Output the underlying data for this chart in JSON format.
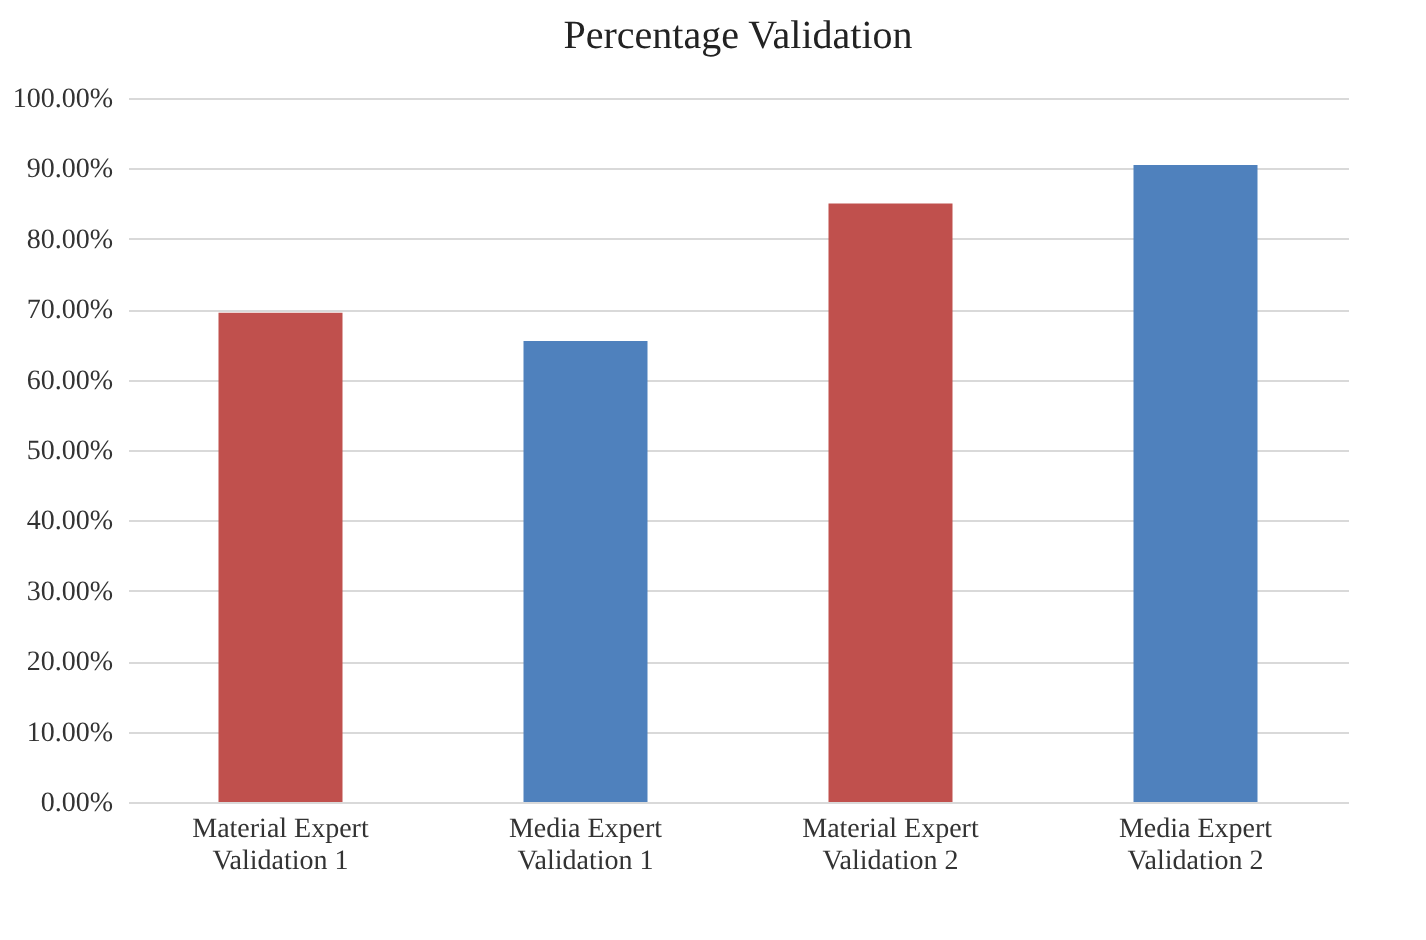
{
  "chart_data": {
    "type": "bar",
    "title": "Percentage Validation",
    "categories": [
      "Material Expert Validation 1",
      "Media Expert Validation 1",
      "Material Expert Validation 2",
      "Media Expert Validation 2"
    ],
    "values": [
      69.5,
      65.5,
      85,
      90.5
    ],
    "colors": [
      "#c0504d",
      "#4f81bd",
      "#c0504d",
      "#4f81bd"
    ],
    "ylim": [
      0,
      100
    ],
    "yticks": [
      {
        "value": 0,
        "label": "0.00%"
      },
      {
        "value": 10,
        "label": "10.00%"
      },
      {
        "value": 20,
        "label": "20.00%"
      },
      {
        "value": 30,
        "label": "30.00%"
      },
      {
        "value": 40,
        "label": "40.00%"
      },
      {
        "value": 50,
        "label": "50.00%"
      },
      {
        "value": 60,
        "label": "60.00%"
      },
      {
        "value": 70,
        "label": "70.00%"
      },
      {
        "value": 80,
        "label": "80.00%"
      },
      {
        "value": 90,
        "label": "90.00%"
      },
      {
        "value": 100,
        "label": "100.00%"
      }
    ],
    "grid": "y"
  }
}
